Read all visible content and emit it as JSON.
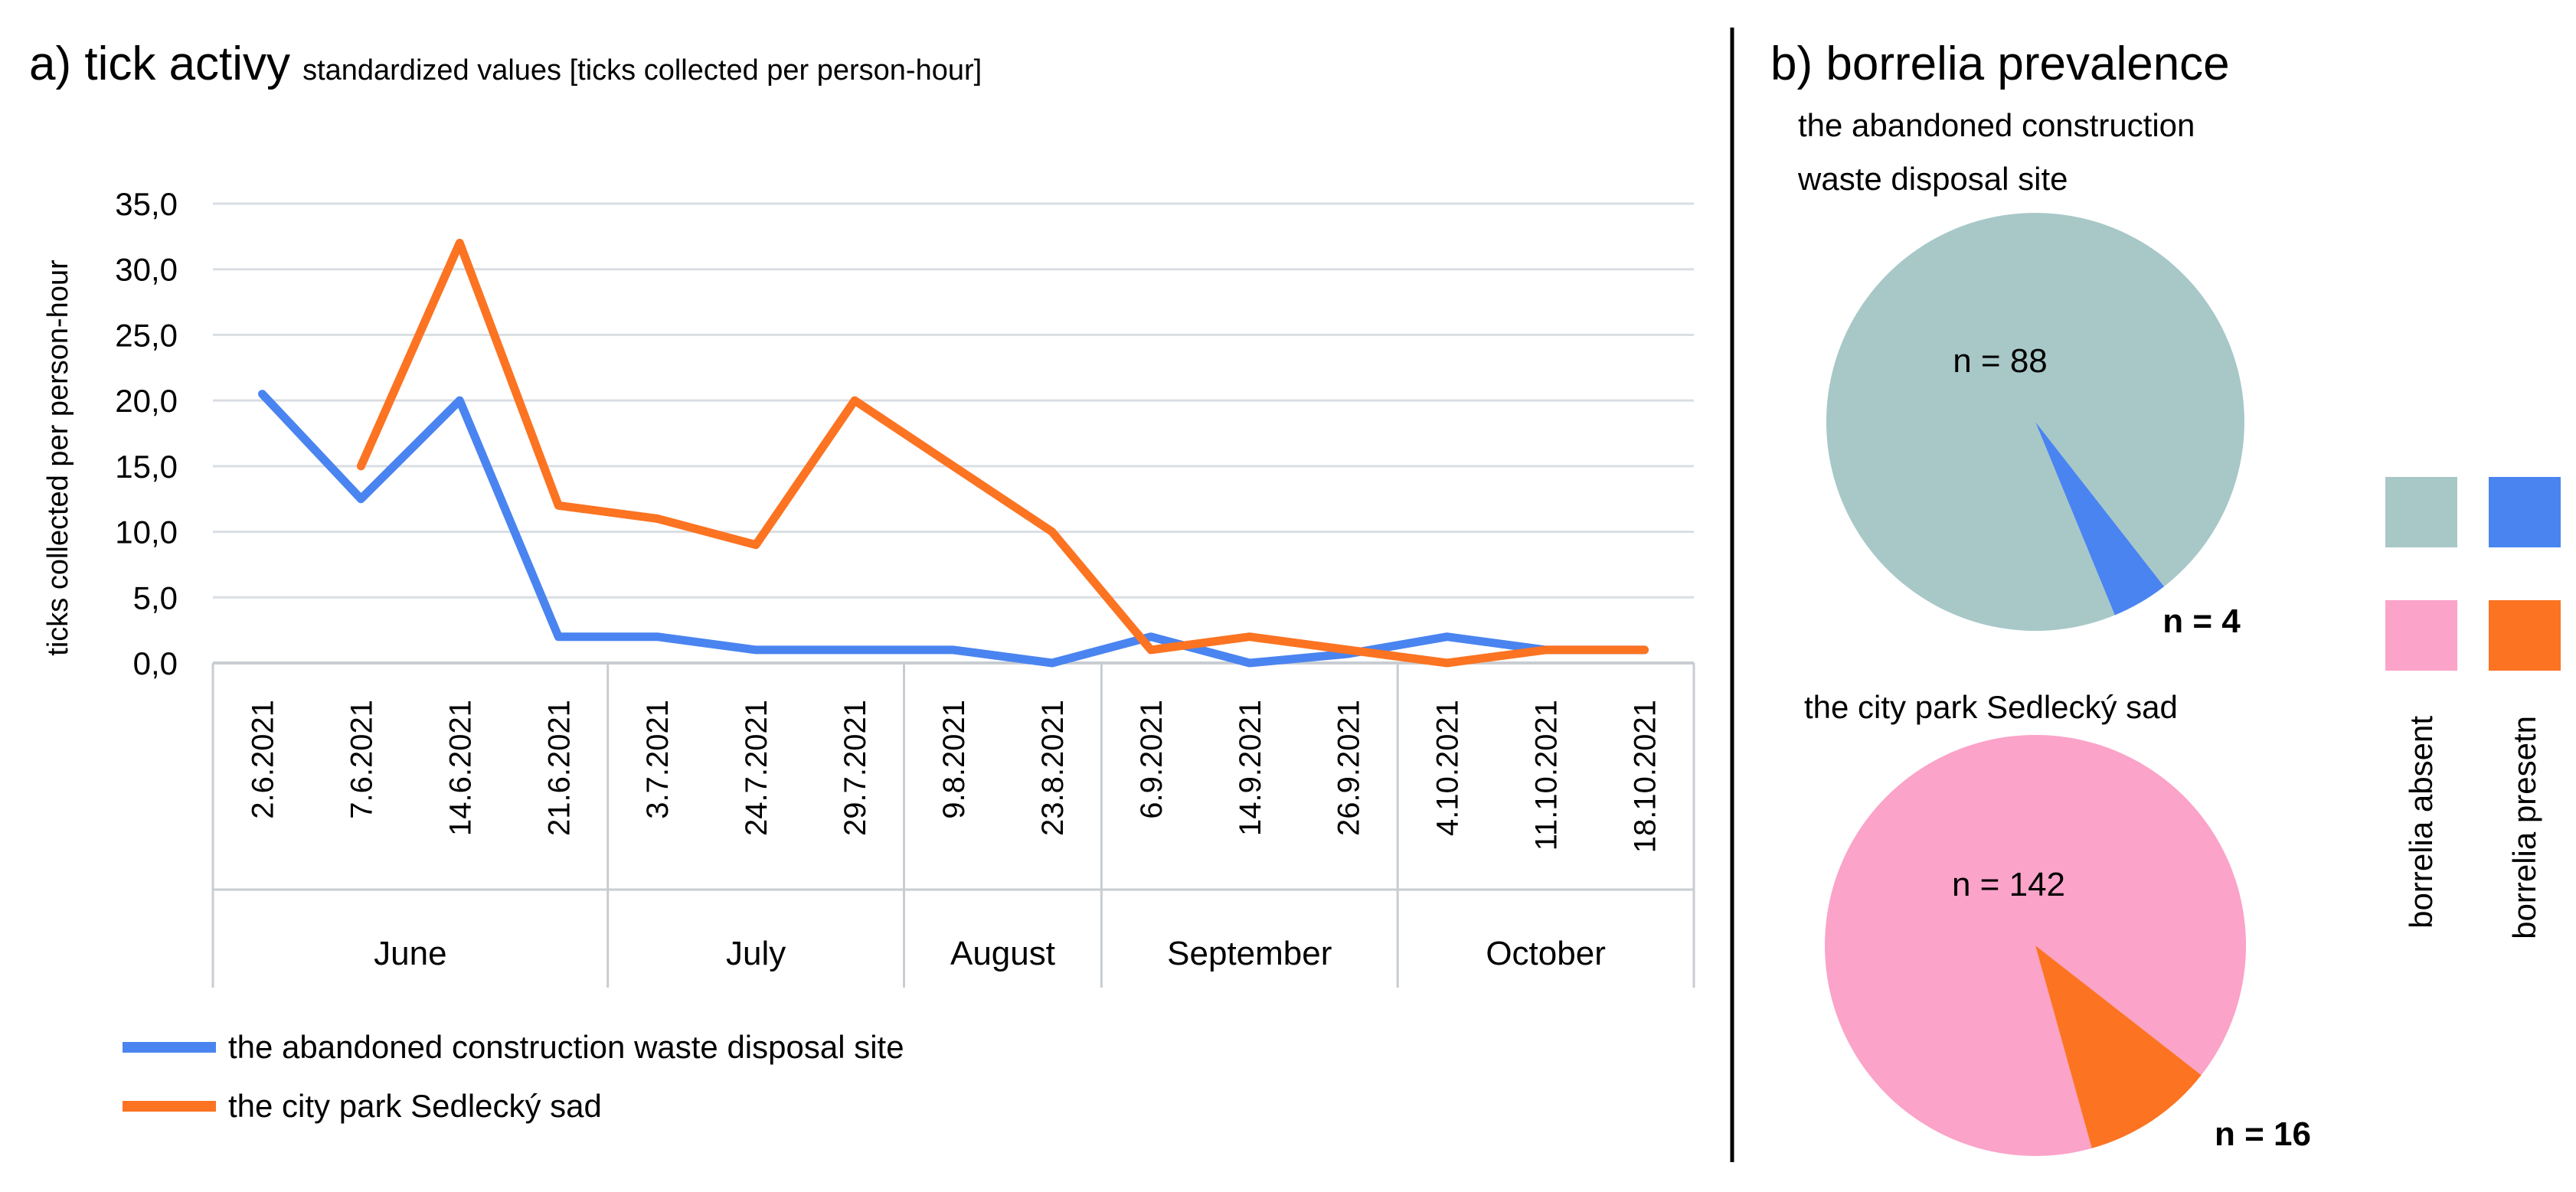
{
  "panel_a": {
    "title_main": "a) tick activy",
    "title_sub": "standardized values [ticks collected per person-hour]"
  },
  "panel_b": {
    "title": "b) borrelia prevalence",
    "pie1_title_line1": "the abandoned construction",
    "pie1_title_line2": "waste disposal site",
    "pie2_title": "the city park Sedlecký sad"
  },
  "colors": {
    "waste": "#4a84f0",
    "park": "#fc7322",
    "grid": "#d9dee3",
    "axis": "#c8cdd2",
    "absent1": "#a8c8c8",
    "present1": "#4a84f0",
    "absent2": "#fba3c9",
    "present2": "#fc7322"
  },
  "chart_data": [
    {
      "type": "line",
      "title": "a) tick activy",
      "subtitle": "standardized values [ticks collected per person-hour]",
      "ylabel": "ticks collected per person-hour",
      "xlabel": "",
      "ylim": [
        0,
        35
      ],
      "yticks": [
        "0,0",
        "5,0",
        "10,0",
        "15,0",
        "20,0",
        "25,0",
        "30,0",
        "35,0"
      ],
      "categories": [
        "2.6.2021",
        "7.6.2021",
        "14.6.2021",
        "21.6.2021",
        "3.7.2021",
        "24.7.2021",
        "29.7.2021",
        "9.8.2021",
        "23.8.2021",
        "6.9.2021",
        "14.9.2021",
        "26.9.2021",
        "4.10.2021",
        "11.10.2021",
        "18.10.2021"
      ],
      "month_groups": [
        {
          "label": "June",
          "count": 4
        },
        {
          "label": "July",
          "count": 3
        },
        {
          "label": "August",
          "count": 2
        },
        {
          "label": "September",
          "count": 3
        },
        {
          "label": "October",
          "count": 3
        }
      ],
      "series": [
        {
          "name": "the abandoned construction waste disposal site",
          "color": "#4a84f0",
          "values": [
            20.5,
            12.5,
            20.0,
            2.0,
            2.0,
            1.0,
            1.0,
            1.0,
            0.0,
            2.0,
            0.0,
            0.7,
            2.0,
            1.0,
            1.0
          ]
        },
        {
          "name": "the city park Sedlecký sad",
          "color": "#fc7322",
          "values": [
            null,
            15.0,
            32.0,
            12.0,
            11.0,
            9.0,
            20.0,
            15.0,
            10.0,
            1.0,
            2.0,
            1.0,
            0.0,
            1.0,
            1.0
          ]
        }
      ],
      "legend": "bottom-left",
      "grid": true
    },
    {
      "type": "pie",
      "title": "the abandoned construction waste disposal site",
      "slices": [
        {
          "label": "borrelia absent",
          "value": 88,
          "data_label": "n = 88",
          "color": "#a8c8c8"
        },
        {
          "label": "borrelia presetn",
          "value": 4,
          "data_label": "n = 4",
          "color": "#4a84f0"
        }
      ]
    },
    {
      "type": "pie",
      "title": "the city park Sedlecký sad",
      "slices": [
        {
          "label": "borrelia absent",
          "value": 142,
          "data_label": "n = 142",
          "color": "#fba3c9"
        },
        {
          "label": "borrelia presetn",
          "value": 16,
          "data_label": "n = 16",
          "color": "#fc7322"
        }
      ]
    }
  ],
  "pie_legend": {
    "absent_label": "borrelia absent",
    "present_label": "borrelia presetn"
  }
}
